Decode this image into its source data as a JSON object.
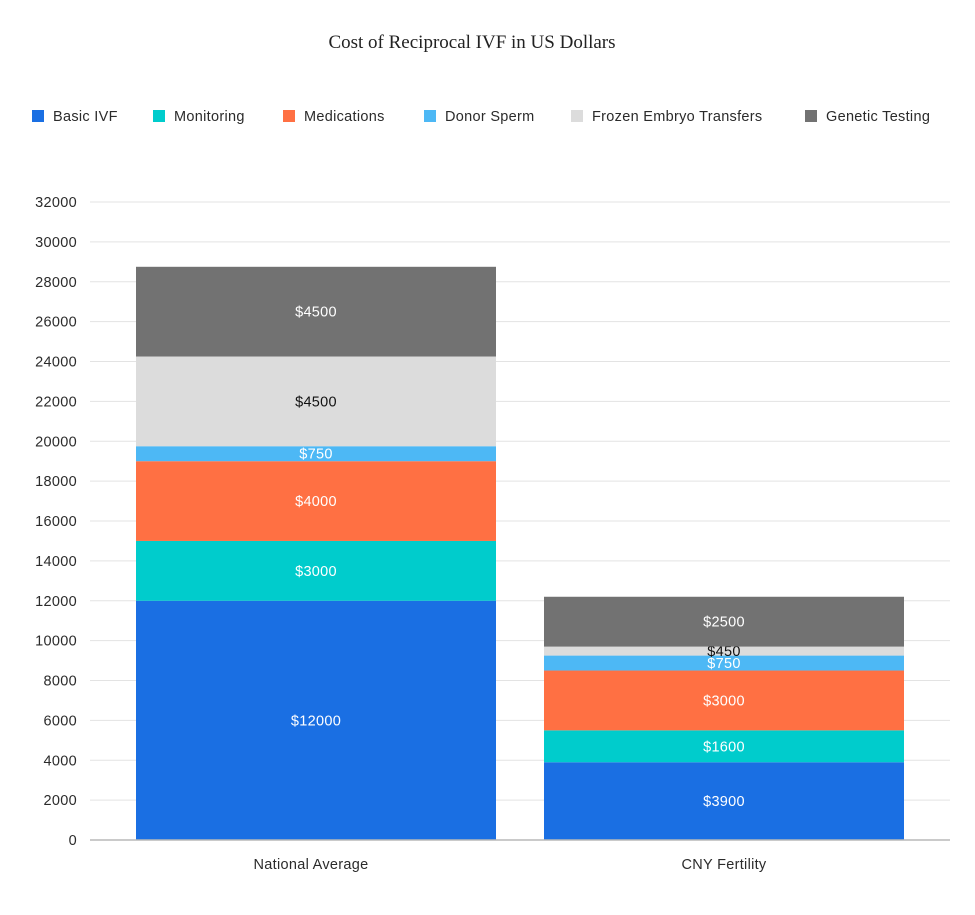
{
  "chart_data": {
    "type": "bar",
    "stacked": true,
    "title": "Cost of Reciprocal IVF in US Dollars",
    "xlabel": "",
    "ylabel": "",
    "ylim": [
      0,
      32000
    ],
    "yticks": [
      0,
      2000,
      4000,
      6000,
      8000,
      10000,
      12000,
      14000,
      16000,
      18000,
      20000,
      22000,
      24000,
      26000,
      28000,
      30000,
      32000
    ],
    "grid": true,
    "legend_position": "top",
    "categories": [
      "National Average",
      "CNY Fertility"
    ],
    "series": [
      {
        "name": "Basic IVF",
        "color": "#1a6fe3",
        "label_color": "#ffffff",
        "values": [
          12000,
          3900
        ],
        "labels": [
          "$12000",
          "$3900"
        ]
      },
      {
        "name": "Monitoring",
        "color": "#00cccc",
        "label_color": "#ffffff",
        "values": [
          3000,
          1600
        ],
        "labels": [
          "$3000",
          "$1600"
        ]
      },
      {
        "name": "Medications",
        "color": "#ff7043",
        "label_color": "#ffffff",
        "values": [
          4000,
          3000
        ],
        "labels": [
          "$4000",
          "$3000"
        ]
      },
      {
        "name": "Donor Sperm",
        "color": "#4db8f5",
        "label_color": "#ffffff",
        "values": [
          750,
          750
        ],
        "labels": [
          "$750",
          "$750"
        ]
      },
      {
        "name": "Frozen Embryo Transfers",
        "color": "#dcdcdc",
        "label_color": "#111111",
        "values": [
          4500,
          450
        ],
        "labels": [
          "$4500",
          "$450"
        ]
      },
      {
        "name": "Genetic Testing",
        "color": "#727272",
        "label_color": "#ffffff",
        "values": [
          4500,
          2500
        ],
        "labels": [
          "$4500",
          "$2500"
        ]
      }
    ]
  }
}
